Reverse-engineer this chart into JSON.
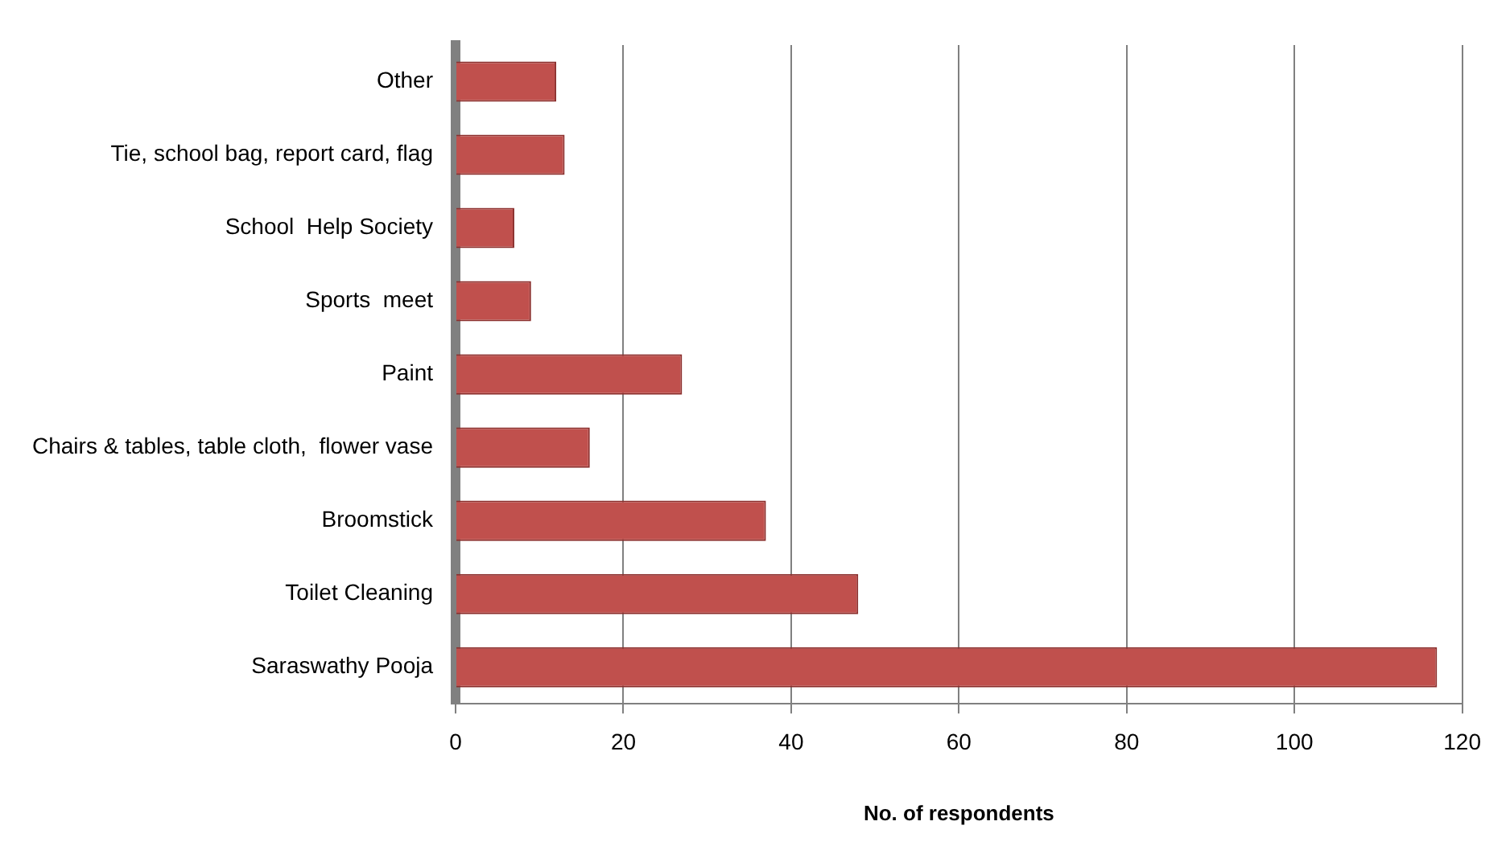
{
  "chart_data": {
    "type": "bar",
    "orientation": "horizontal",
    "xlabel": "No. of respondents",
    "categories": [
      "Other",
      "Tie, school bag, report card, flag",
      "School  Help Society",
      "Sports  meet",
      "Paint",
      "Chairs & tables, table cloth,  flower vase",
      "Broomstick",
      "Toilet Cleaning",
      "Saraswathy Pooja"
    ],
    "values": [
      12,
      13,
      7,
      9,
      27,
      16,
      37,
      48,
      117
    ],
    "color": "#c0504d",
    "xlim": [
      0,
      120
    ],
    "xticks": [
      0,
      20,
      40,
      60,
      80,
      100,
      120
    ],
    "grid": "x",
    "legend": false
  }
}
